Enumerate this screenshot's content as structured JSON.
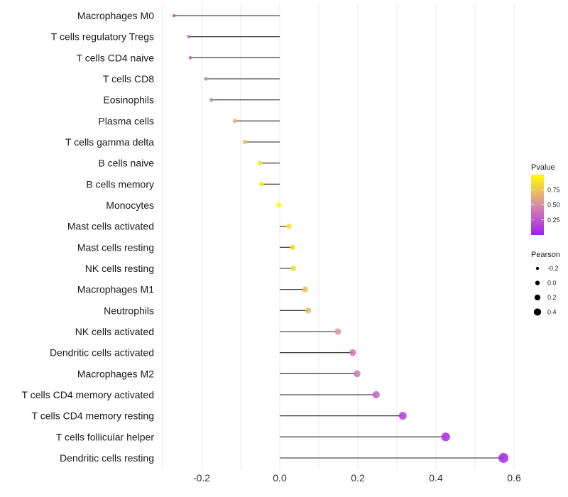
{
  "chart_data": {
    "type": "lollipop",
    "title": "",
    "xlabel": "",
    "ylabel": "",
    "xlim": [
      -0.3,
      0.63
    ],
    "xticks": [
      -0.2,
      0.0,
      0.2,
      0.4,
      0.6
    ],
    "xtick_labels": [
      "-0.2",
      "0.0",
      "0.2",
      "0.4",
      "0.6"
    ],
    "grid": true,
    "categories": [
      "Macrophages M0",
      "T cells regulatory  Tregs",
      "T cells CD4 naive",
      "T cells CD8",
      "Eosinophils",
      "Plasma cells",
      "T cells gamma delta",
      "B cells naive",
      "B cells memory",
      "Monocytes",
      "Mast cells activated",
      "Mast cells resting",
      "NK cells resting",
      "Macrophages M1",
      "Neutrophils",
      "NK cells activated",
      "Dendritic cells activated",
      "Macrophages M2",
      "T cells CD4 memory activated",
      "T cells CD4 memory resting",
      "T cells follicular helper",
      "Dendritic cells resting"
    ],
    "pearson": [
      -0.271,
      -0.233,
      -0.229,
      -0.189,
      -0.175,
      -0.115,
      -0.089,
      -0.051,
      -0.047,
      -0.002,
      0.024,
      0.033,
      0.035,
      0.065,
      0.073,
      0.149,
      0.187,
      0.198,
      0.247,
      0.315,
      0.425,
      0.573
    ],
    "pvalue": [
      0.15,
      0.3,
      0.3,
      0.4,
      0.45,
      0.65,
      0.72,
      0.9,
      0.92,
      0.99,
      0.88,
      0.86,
      0.86,
      0.72,
      0.7,
      0.55,
      0.4,
      0.4,
      0.3,
      0.15,
      0.05,
      0.02
    ],
    "legend": {
      "placement": "right",
      "color": {
        "title": "Pvalue",
        "ticks": [
          0.25,
          0.5,
          0.75
        ],
        "tick_labels": [
          "0.25",
          "0.50",
          "0.75"
        ],
        "low": "#A020F0",
        "mid": "#D98CA6",
        "high": "#FFFF00"
      },
      "size": {
        "title": "Pearson",
        "values": [
          -0.2,
          0.0,
          0.2,
          0.4
        ],
        "labels": [
          "-0.2",
          "0.0",
          "0.2",
          "0.4"
        ]
      }
    }
  }
}
